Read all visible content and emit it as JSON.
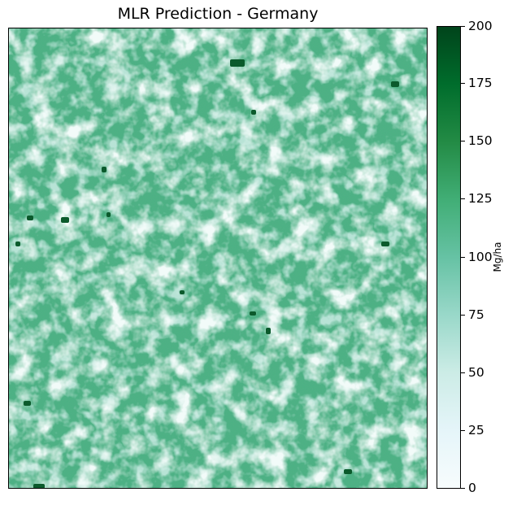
{
  "chart_data": {
    "type": "heatmap",
    "title": "MLR Prediction - Germany",
    "colorbar": {
      "label": "Mg/ha",
      "min": 0,
      "max": 200,
      "ticks": [
        0,
        25,
        50,
        75,
        100,
        125,
        150,
        175,
        200
      ],
      "colormap": "BuGn",
      "colors": [
        "#f7fcfd",
        "#e5f5f9",
        "#ccece6",
        "#99d8c9",
        "#66c2a4",
        "#41ae76",
        "#238b45",
        "#006d2c",
        "#00441b"
      ]
    },
    "axes_visible": false,
    "dominant_value_range": [
      110,
      130
    ],
    "grid": false
  }
}
